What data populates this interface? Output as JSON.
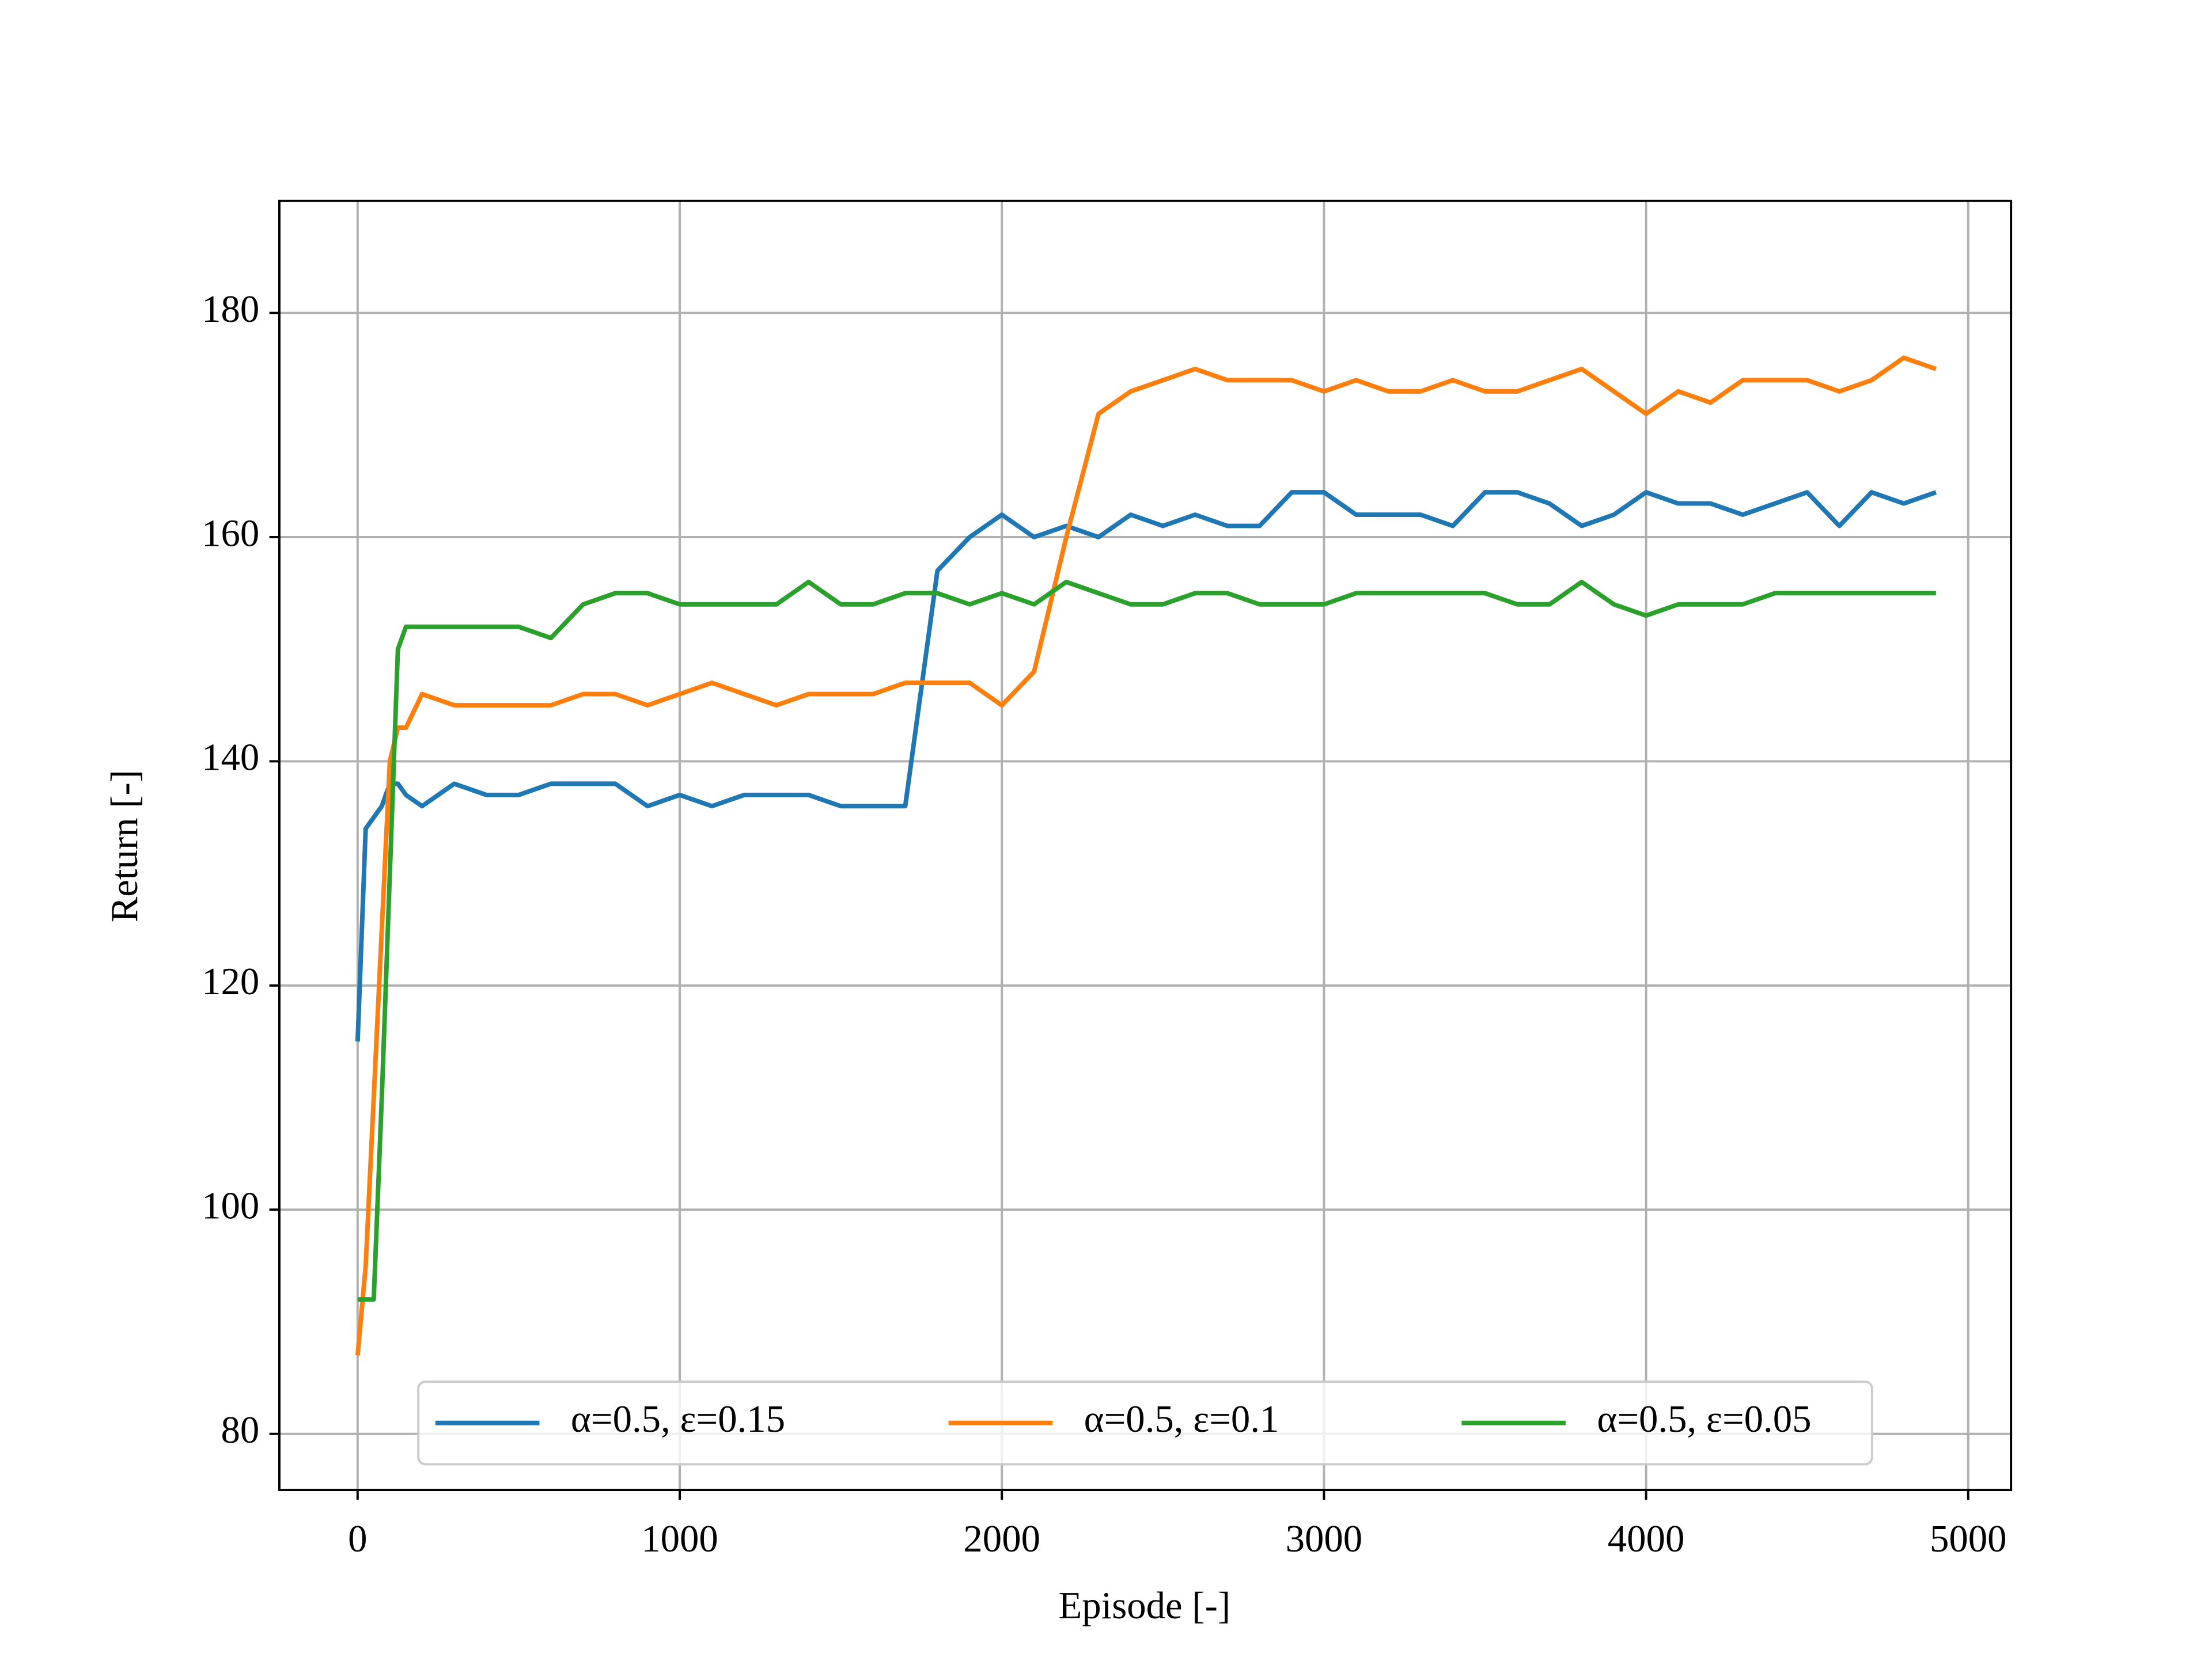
{
  "chart_data": {
    "type": "line",
    "xlabel": "Episode [-]",
    "ylabel": "Return [-]",
    "x": [
      0,
      25,
      50,
      75,
      100,
      125,
      150,
      200,
      300,
      400,
      500,
      600,
      700,
      800,
      900,
      1000,
      1100,
      1200,
      1300,
      1400,
      1500,
      1600,
      1700,
      1800,
      1900,
      2000,
      2100,
      2200,
      2300,
      2400,
      2500,
      2600,
      2700,
      2800,
      2900,
      3000,
      3100,
      3200,
      3300,
      3400,
      3500,
      3600,
      3700,
      3800,
      3900,
      4000,
      4100,
      4200,
      4300,
      4400,
      4500,
      4600,
      4700,
      4800,
      4900
    ],
    "series": [
      {
        "name": "α=0.5, ε=0.15",
        "color": "#1f77b4",
        "values": [
          115,
          134,
          135,
          136,
          138,
          138,
          137,
          136,
          138,
          137,
          137,
          138,
          138,
          138,
          136,
          137,
          136,
          137,
          137,
          137,
          136,
          136,
          136,
          157,
          160,
          162,
          160,
          161,
          160,
          162,
          161,
          162,
          161,
          161,
          164,
          164,
          162,
          162,
          162,
          161,
          164,
          164,
          163,
          161,
          162,
          164,
          163,
          163,
          162,
          163,
          164,
          161,
          164,
          163,
          164
        ]
      },
      {
        "name": "α=0.5, ε=0.1",
        "color": "#ff7f0e",
        "values": [
          87,
          95,
          110,
          125,
          140,
          143,
          143,
          146,
          145,
          145,
          145,
          145,
          146,
          146,
          145,
          146,
          147,
          146,
          145,
          146,
          146,
          146,
          147,
          147,
          147,
          145,
          148,
          160,
          171,
          173,
          174,
          175,
          174,
          174,
          174,
          173,
          174,
          173,
          173,
          174,
          173,
          173,
          174,
          175,
          173,
          171,
          173,
          172,
          174,
          174,
          174,
          173,
          174,
          176,
          175
        ]
      },
      {
        "name": "α=0.5, ε=0.05",
        "color": "#2ca02c",
        "values": [
          92,
          92,
          92,
          110,
          130,
          150,
          152,
          152,
          152,
          152,
          152,
          151,
          154,
          155,
          155,
          154,
          154,
          154,
          154,
          156,
          154,
          154,
          155,
          155,
          154,
          155,
          154,
          156,
          155,
          154,
          154,
          155,
          155,
          154,
          154,
          154,
          155,
          155,
          155,
          155,
          155,
          154,
          154,
          156,
          154,
          153,
          154,
          154,
          154,
          155,
          155,
          155,
          155,
          155,
          155
        ]
      }
    ],
    "xlim": [
      -243,
      5133
    ],
    "ylim": [
      75,
      190
    ],
    "xticks": [
      0,
      1000,
      2000,
      3000,
      4000,
      5000
    ],
    "yticks": [
      80,
      100,
      120,
      140,
      160,
      180
    ],
    "grid": true,
    "legend": "lower center"
  }
}
